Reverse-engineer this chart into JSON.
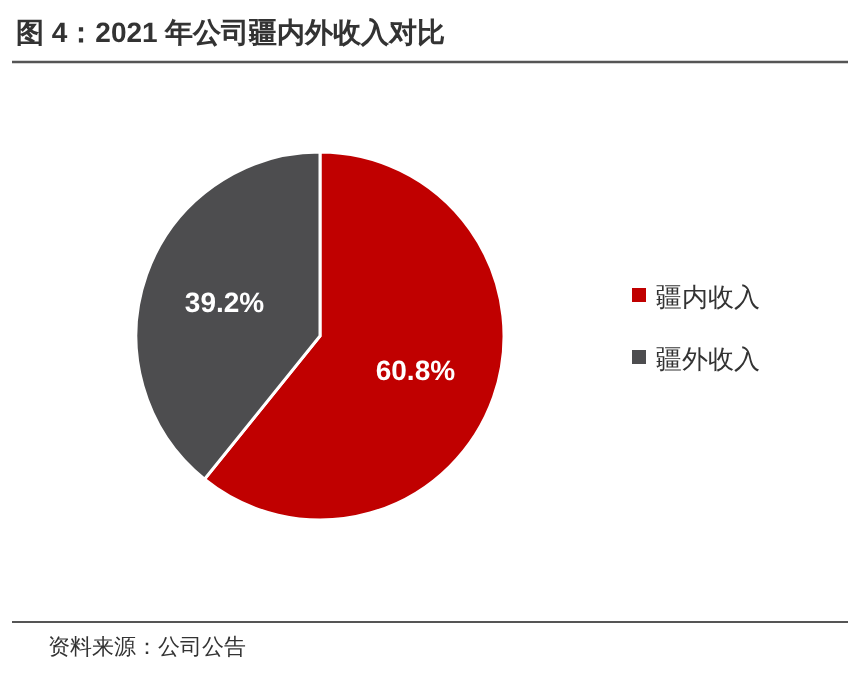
{
  "chart_data": {
    "type": "pie",
    "title": "图 4：2021 年公司疆内外收入对比",
    "categories": [
      "疆内收入",
      "疆外收入"
    ],
    "values": [
      60.8,
      39.2
    ],
    "colors": [
      "#c00000",
      "#4d4d4f"
    ],
    "value_labels": [
      "60.8%",
      "39.2%"
    ],
    "legend": "right",
    "annotations": [
      "资料来源：公司公告"
    ]
  }
}
